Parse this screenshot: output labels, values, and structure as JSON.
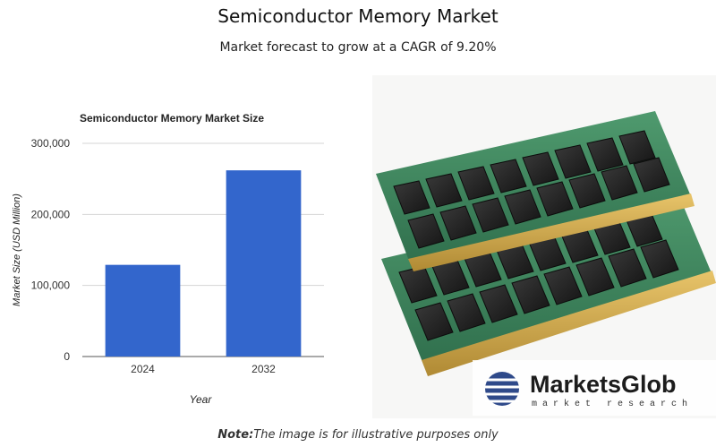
{
  "page": {
    "title": "Semiconductor Memory Market",
    "subtitle": "Market forecast to grow at a CAGR of 9.20%"
  },
  "chart_data": {
    "type": "bar",
    "title": "Semiconductor Memory Market Size",
    "xlabel": "Year",
    "ylabel": "Market Size (USD Million)",
    "categories": [
      "2024",
      "2032"
    ],
    "values": [
      129000,
      262000
    ],
    "ylim": [
      0,
      300000
    ],
    "yticks": [
      0,
      100000,
      200000,
      300000
    ],
    "ytick_labels": [
      "0",
      "100,000",
      "200,000",
      "300,000"
    ],
    "grid": true,
    "bar_color": "#3366cc"
  },
  "illustration": {
    "subject": "RAM memory modules",
    "logo_name": "MarketsGlob",
    "logo_tagline": "market research",
    "logo_icon": "striped-globe-icon",
    "logo_color": "#2f4a8a"
  },
  "note": {
    "label": "Note:",
    "text": "The image is for illustrative purposes only"
  }
}
